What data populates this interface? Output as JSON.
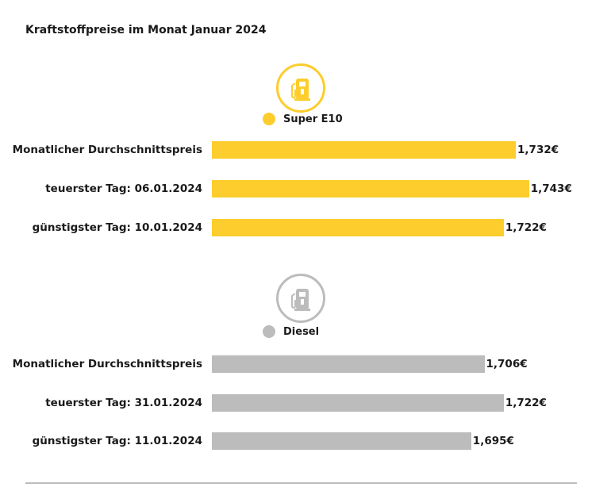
{
  "chart_data": {
    "type": "bar",
    "orientation": "horizontal",
    "title": "Kraftstoffpreise im Monat Januar 2024",
    "unit": "€",
    "groups": [
      {
        "name": "Super E10",
        "color": "#FCCD2C",
        "icon": "fuel-pump-icon",
        "categories": [
          "Monatlicher Durchschnittspreis",
          "teuerster Tag: 06.01.2024",
          "günstigster Tag: 10.01.2024"
        ],
        "values": [
          1.732,
          1.743,
          1.722
        ],
        "value_labels": [
          "1,732€",
          "1,743€",
          "1,722€"
        ]
      },
      {
        "name": "Diesel",
        "color": "#BDBCBC",
        "icon": "fuel-pump-icon",
        "categories": [
          "Monatlicher Durchschnittspreis",
          "teuerster Tag: 31.01.2024",
          "günstigster Tag: 11.01.2024"
        ],
        "values": [
          1.706,
          1.722,
          1.695
        ],
        "value_labels": [
          "1,706€",
          "1,722€",
          "1,695€"
        ]
      }
    ]
  }
}
